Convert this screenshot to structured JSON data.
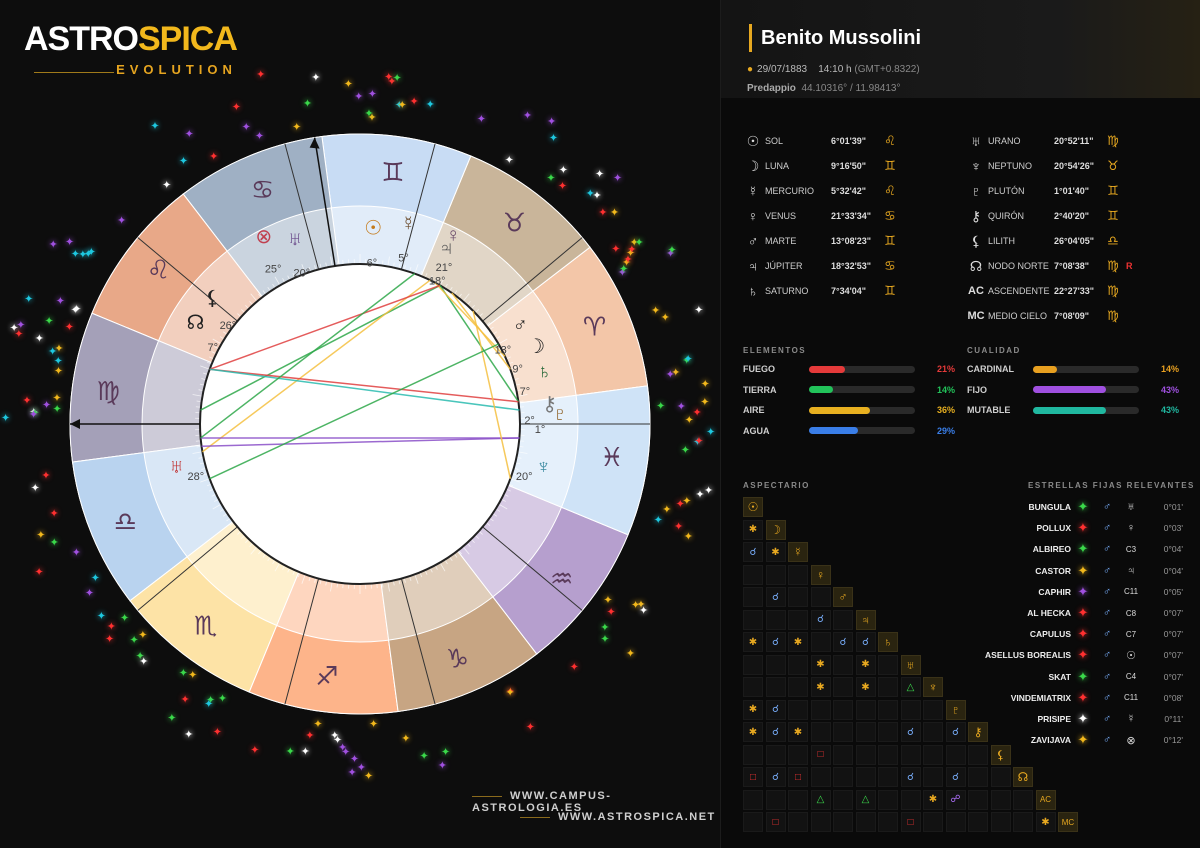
{
  "brand": {
    "name_part1": "ASTRO",
    "name_part2": "SPICA",
    "tagline": "EVOLUTION"
  },
  "urls": [
    "WWW.CAMPUS-ASTROLOGIA.ES",
    "WWW.ASTROSPICA.NET"
  ],
  "person": {
    "name": "Benito Mussolini",
    "date": "29/07/1883",
    "time": "14:10 h",
    "gmt": "(GMT+0.8322)",
    "place": "Predappio",
    "coords": "44.10316° / 11.98413°"
  },
  "colors": {
    "accent": "#e7a820",
    "fire": "#f0a070",
    "earth": "#c8ad8c",
    "air": "#bfd6f2",
    "water": "#d8e6f6"
  },
  "planets_left": [
    {
      "glyph": "☉",
      "name": "SOL",
      "deg": "6°01'39\"",
      "sign": "♌"
    },
    {
      "glyph": "☽",
      "name": "LUNA",
      "deg": "9°16'50\"",
      "sign": "♊"
    },
    {
      "glyph": "☿",
      "name": "MERCURIO",
      "deg": "5°32'42\"",
      "sign": "♌"
    },
    {
      "glyph": "♀",
      "name": "VENUS",
      "deg": "21°33'34\"",
      "sign": "♋"
    },
    {
      "glyph": "♂",
      "name": "MARTE",
      "deg": "13°08'23\"",
      "sign": "♊"
    },
    {
      "glyph": "♃",
      "name": "JÚPITER",
      "deg": "18°32'53\"",
      "sign": "♋"
    },
    {
      "glyph": "♄",
      "name": "SATURNO",
      "deg": "7°34'04\"",
      "sign": "♊"
    }
  ],
  "planets_right": [
    {
      "glyph": "♅",
      "name": "URANO",
      "deg": "20°52'11\"",
      "sign": "♍",
      "rx": ""
    },
    {
      "glyph": "♆",
      "name": "NEPTUNO",
      "deg": "20°54'26\"",
      "sign": "♉",
      "rx": ""
    },
    {
      "glyph": "♇",
      "name": "PLUTÓN",
      "deg": "1°01'40\"",
      "sign": "♊",
      "rx": ""
    },
    {
      "glyph": "⚷",
      "name": "QUIRÓN",
      "deg": "2°40'20\"",
      "sign": "♊",
      "rx": ""
    },
    {
      "glyph": "⚸",
      "name": "LILITH",
      "deg": "26°04'05\"",
      "sign": "♎",
      "rx": ""
    },
    {
      "glyph": "☊",
      "name": "NODO NORTE",
      "deg": "7°08'38\"",
      "sign": "♍",
      "rx": "R"
    },
    {
      "glyph": "AC",
      "name": "ASCENDENTE",
      "deg": "22°27'33\"",
      "sign": "♍",
      "rx": ""
    },
    {
      "glyph": "MC",
      "name": "MEDIO CIELO",
      "deg": "7°08'09\"",
      "sign": "♍",
      "rx": ""
    }
  ],
  "elements": {
    "title": "ELEMENTOS",
    "items": [
      {
        "label": "FUEGO",
        "pct": 21,
        "text": "21%",
        "color": "#e53a3a"
      },
      {
        "label": "TIERRA",
        "pct": 14,
        "text": "14%",
        "color": "#22c35a"
      },
      {
        "label": "AIRE",
        "pct": 36,
        "text": "36%",
        "color": "#e8b020"
      },
      {
        "label": "AGUA",
        "pct": 29,
        "text": "29%",
        "color": "#3a7ee8"
      }
    ]
  },
  "qualities": {
    "title": "CUALIDAD",
    "items": [
      {
        "label": "CARDINAL",
        "pct": 14,
        "text": "14%",
        "color": "#e8a020"
      },
      {
        "label": "FIJO",
        "pct": 43,
        "text": "43%",
        "color": "#a050e0"
      },
      {
        "label": "MUTABLE",
        "pct": 43,
        "text": "43%",
        "color": "#20b8a0"
      }
    ]
  },
  "aspects_title": "ASPECTARIO",
  "aspect_glyphs": [
    "☉",
    "☽",
    "☿",
    "♀",
    "♂",
    "♃",
    "♄",
    "♅",
    "♆",
    "♇",
    "⚷",
    "⚸",
    "☊",
    "AC",
    "MC"
  ],
  "fixed_stars_title": "ESTRELLAS FIJAS RELEVANTES",
  "fixed_stars": [
    {
      "name": "BUNGULA",
      "color": "#3ad84a",
      "aspect": "♂",
      "point": "♅",
      "deg": "0°01'"
    },
    {
      "name": "POLLUX",
      "color": "#ff3030",
      "aspect": "♂",
      "point": "♀",
      "deg": "0°03'"
    },
    {
      "name": "ALBIREO",
      "color": "#3ad84a",
      "aspect": "♂",
      "point": "C3",
      "deg": "0°04'"
    },
    {
      "name": "CASTOR",
      "color": "#f2b81c",
      "aspect": "♂",
      "point": "♃",
      "deg": "0°04'"
    },
    {
      "name": "CAPHIR",
      "color": "#a050e0",
      "aspect": "♂",
      "point": "C11",
      "deg": "0°05'"
    },
    {
      "name": "AL HECKA",
      "color": "#ff3030",
      "aspect": "♂",
      "point": "C8",
      "deg": "0°07'"
    },
    {
      "name": "CAPULUS",
      "color": "#ff3030",
      "aspect": "♂",
      "point": "C7",
      "deg": "0°07'"
    },
    {
      "name": "ASELLUS BOREALIS",
      "color": "#ff3030",
      "aspect": "♂",
      "point": "☉",
      "deg": "0°07'"
    },
    {
      "name": "SKAT",
      "color": "#3ad84a",
      "aspect": "♂",
      "point": "C4",
      "deg": "0°07'"
    },
    {
      "name": "VINDEMIATRIX",
      "color": "#ff3030",
      "aspect": "♂",
      "point": "C11",
      "deg": "0°08'"
    },
    {
      "name": "PRISIPE",
      "color": "#ffffff",
      "aspect": "♂",
      "point": "☿",
      "deg": "0°11'"
    },
    {
      "name": "ZAVIJAVA",
      "color": "#f2b81c",
      "aspect": "♂",
      "point": "⊗",
      "deg": "0°12'"
    }
  ],
  "chart_wheel": {
    "signs": [
      "♈",
      "♉",
      "♊",
      "♋",
      "♌",
      "♍",
      "♎",
      "♏",
      "♐",
      "♑",
      "♒",
      "♓"
    ],
    "sign_sector_colors": [
      "#e5a89a",
      "#7e7494",
      "#e9e2c4",
      "#8fa2b8",
      "#e6a98a",
      "#9e9bb0",
      "#b8d3ee",
      "#fde0a8",
      "#fdb38a",
      "#c8a888",
      "#b8a4cc",
      "#cfe3f6"
    ],
    "planet_labels": [
      {
        "glyph": "☉",
        "deg": "6°",
        "color": "#c47a1a"
      },
      {
        "glyph": "☿",
        "deg": "5°",
        "color": "#6a4a2a"
      },
      {
        "glyph": "♃",
        "deg": "18°",
        "color": "#555"
      },
      {
        "glyph": "♀",
        "deg": "21°",
        "color": "#6a4a6a"
      },
      {
        "glyph": "♅",
        "deg": "20°",
        "color": "#6a4a8a"
      },
      {
        "glyph": "⊗",
        "deg": "25°",
        "color": "#c04050"
      },
      {
        "glyph": "☽",
        "deg": "9°",
        "color": "#222"
      },
      {
        "glyph": "♂",
        "deg": "13°",
        "color": "#222"
      },
      {
        "glyph": "♄",
        "deg": "7°",
        "color": "#2a6a3a"
      },
      {
        "glyph": "⚷",
        "deg": "2°",
        "color": "#777"
      },
      {
        "glyph": "♇",
        "deg": "1°",
        "color": "#8a5a1a"
      },
      {
        "glyph": "♆",
        "deg": "20°",
        "color": "#3a8aa0"
      },
      {
        "glyph": "⚸",
        "deg": "26°",
        "color": "#222"
      },
      {
        "glyph": "☊",
        "deg": "7°",
        "color": "#222"
      },
      {
        "glyph": "♅",
        "deg": "28°",
        "color": "#c03030"
      }
    ]
  }
}
